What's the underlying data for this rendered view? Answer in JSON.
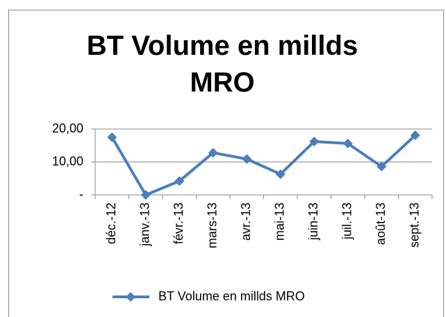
{
  "chart_data": {
    "type": "line",
    "title": "BT Volume en millds MRO",
    "categories": [
      "déc.-12",
      "janv.-13",
      "févr.-13",
      "mars-13",
      "avr.-13",
      "mai-13",
      "juin-13",
      "juil.-13",
      "août-13",
      "sept.-13"
    ],
    "series": [
      {
        "name": "BT Volume en millds MRO",
        "color": "#4a7ebb",
        "values": [
          17.5,
          0,
          4.2,
          12.8,
          10.9,
          6.3,
          16.2,
          15.6,
          8.6,
          18.1
        ]
      }
    ],
    "ylim": [
      0,
      20
    ],
    "yticks": [
      {
        "value": 0,
        "label": "-"
      },
      {
        "value": 10,
        "label": "10,00"
      },
      {
        "value": 20,
        "label": "20,00"
      }
    ],
    "grid": true,
    "legend": "bottom"
  }
}
